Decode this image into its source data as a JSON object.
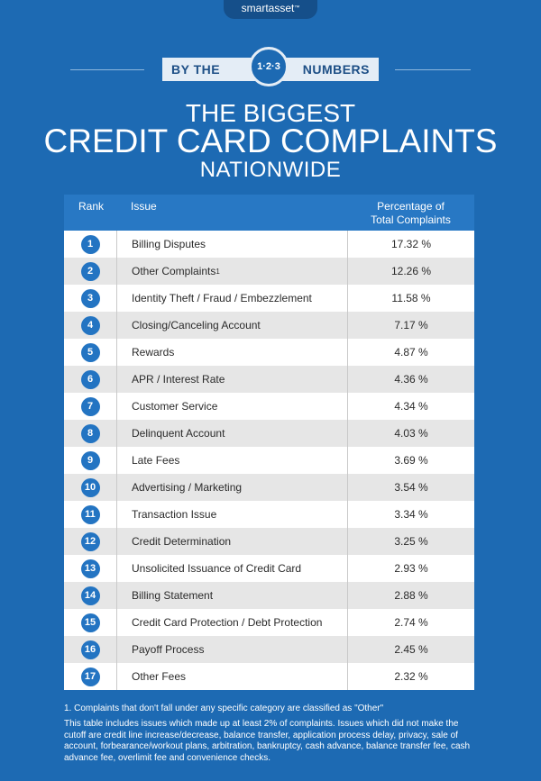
{
  "header": {
    "brand": "smartasset",
    "brand_mark": "™",
    "ribbon_left": "BY THE",
    "badge": "1·2·3",
    "ribbon_right": "NUMBERS",
    "title_line1": "THE BIGGEST",
    "title_line2": "CREDIT CARD COMPLAINTS",
    "title_line3": "NATIONWIDE"
  },
  "table": {
    "col_rank": "Rank",
    "col_issue": "Issue",
    "col_pct_line1": "Percentage of",
    "col_pct_line2": "Total Complaints",
    "rows": [
      {
        "rank": "1",
        "issue": "Billing Disputes",
        "sup": "",
        "pct": "17.32 %"
      },
      {
        "rank": "2",
        "issue": "Other Complaints",
        "sup": "1",
        "pct": "12.26 %"
      },
      {
        "rank": "3",
        "issue": "Identity Theft / Fraud / Embezzlement",
        "sup": "",
        "pct": "11.58 %"
      },
      {
        "rank": "4",
        "issue": "Closing/Canceling Account",
        "sup": "",
        "pct": "7.17 %"
      },
      {
        "rank": "5",
        "issue": "Rewards",
        "sup": "",
        "pct": "4.87 %"
      },
      {
        "rank": "6",
        "issue": "APR / Interest Rate",
        "sup": "",
        "pct": "4.36 %"
      },
      {
        "rank": "7",
        "issue": "Customer Service",
        "sup": "",
        "pct": "4.34 %"
      },
      {
        "rank": "8",
        "issue": "Delinquent Account",
        "sup": "",
        "pct": "4.03 %"
      },
      {
        "rank": "9",
        "issue": "Late Fees",
        "sup": "",
        "pct": "3.69 %"
      },
      {
        "rank": "10",
        "issue": "Advertising / Marketing",
        "sup": "",
        "pct": "3.54 %"
      },
      {
        "rank": "11",
        "issue": "Transaction Issue",
        "sup": "",
        "pct": "3.34 %"
      },
      {
        "rank": "12",
        "issue": "Credit Determination",
        "sup": "",
        "pct": "3.25 %"
      },
      {
        "rank": "13",
        "issue": "Unsolicited Issuance of Credit Card",
        "sup": "",
        "pct": "2.93 %"
      },
      {
        "rank": "14",
        "issue": "Billing Statement",
        "sup": "",
        "pct": "2.88 %"
      },
      {
        "rank": "15",
        "issue": "Credit Card Protection / Debt Protection",
        "sup": "",
        "pct": "2.74 %"
      },
      {
        "rank": "16",
        "issue": "Payoff Process",
        "sup": "",
        "pct": "2.45 %"
      },
      {
        "rank": "17",
        "issue": "Other Fees",
        "sup": "",
        "pct": "2.32 %"
      }
    ]
  },
  "footnote": "1. Complaints that don't fall under any specific category are classified as \"Other\"",
  "note": "This table includes issues which made up at least 2% of complaints. Issues which did not make the cutoff are credit line increase/decrease, balance transfer, application process delay, privacy, sale of account, forbearance/workout plans, arbitration, bankruptcy, cash advance, balance transfer fee, cash advance fee, overlimit fee and convenience checks.",
  "colors": {
    "background": "#1d6ab3",
    "header_row": "#2878c4",
    "rank_circle": "#2374c2",
    "alt_row": "#e6e6e6"
  },
  "chart_data": {
    "type": "table",
    "title": "THE BIGGEST CREDIT CARD COMPLAINTS NATIONWIDE",
    "columns": [
      "Rank",
      "Issue",
      "Percentage of Total Complaints"
    ],
    "categories": [
      "Billing Disputes",
      "Other Complaints",
      "Identity Theft / Fraud / Embezzlement",
      "Closing/Canceling Account",
      "Rewards",
      "APR / Interest Rate",
      "Customer Service",
      "Delinquent Account",
      "Late Fees",
      "Advertising / Marketing",
      "Transaction Issue",
      "Credit Determination",
      "Unsolicited Issuance of Credit Card",
      "Billing Statement",
      "Credit Card Protection / Debt Protection",
      "Payoff Process",
      "Other Fees"
    ],
    "values": [
      17.32,
      12.26,
      11.58,
      7.17,
      4.87,
      4.36,
      4.34,
      4.03,
      3.69,
      3.54,
      3.34,
      3.25,
      2.93,
      2.88,
      2.74,
      2.45,
      2.32
    ]
  }
}
